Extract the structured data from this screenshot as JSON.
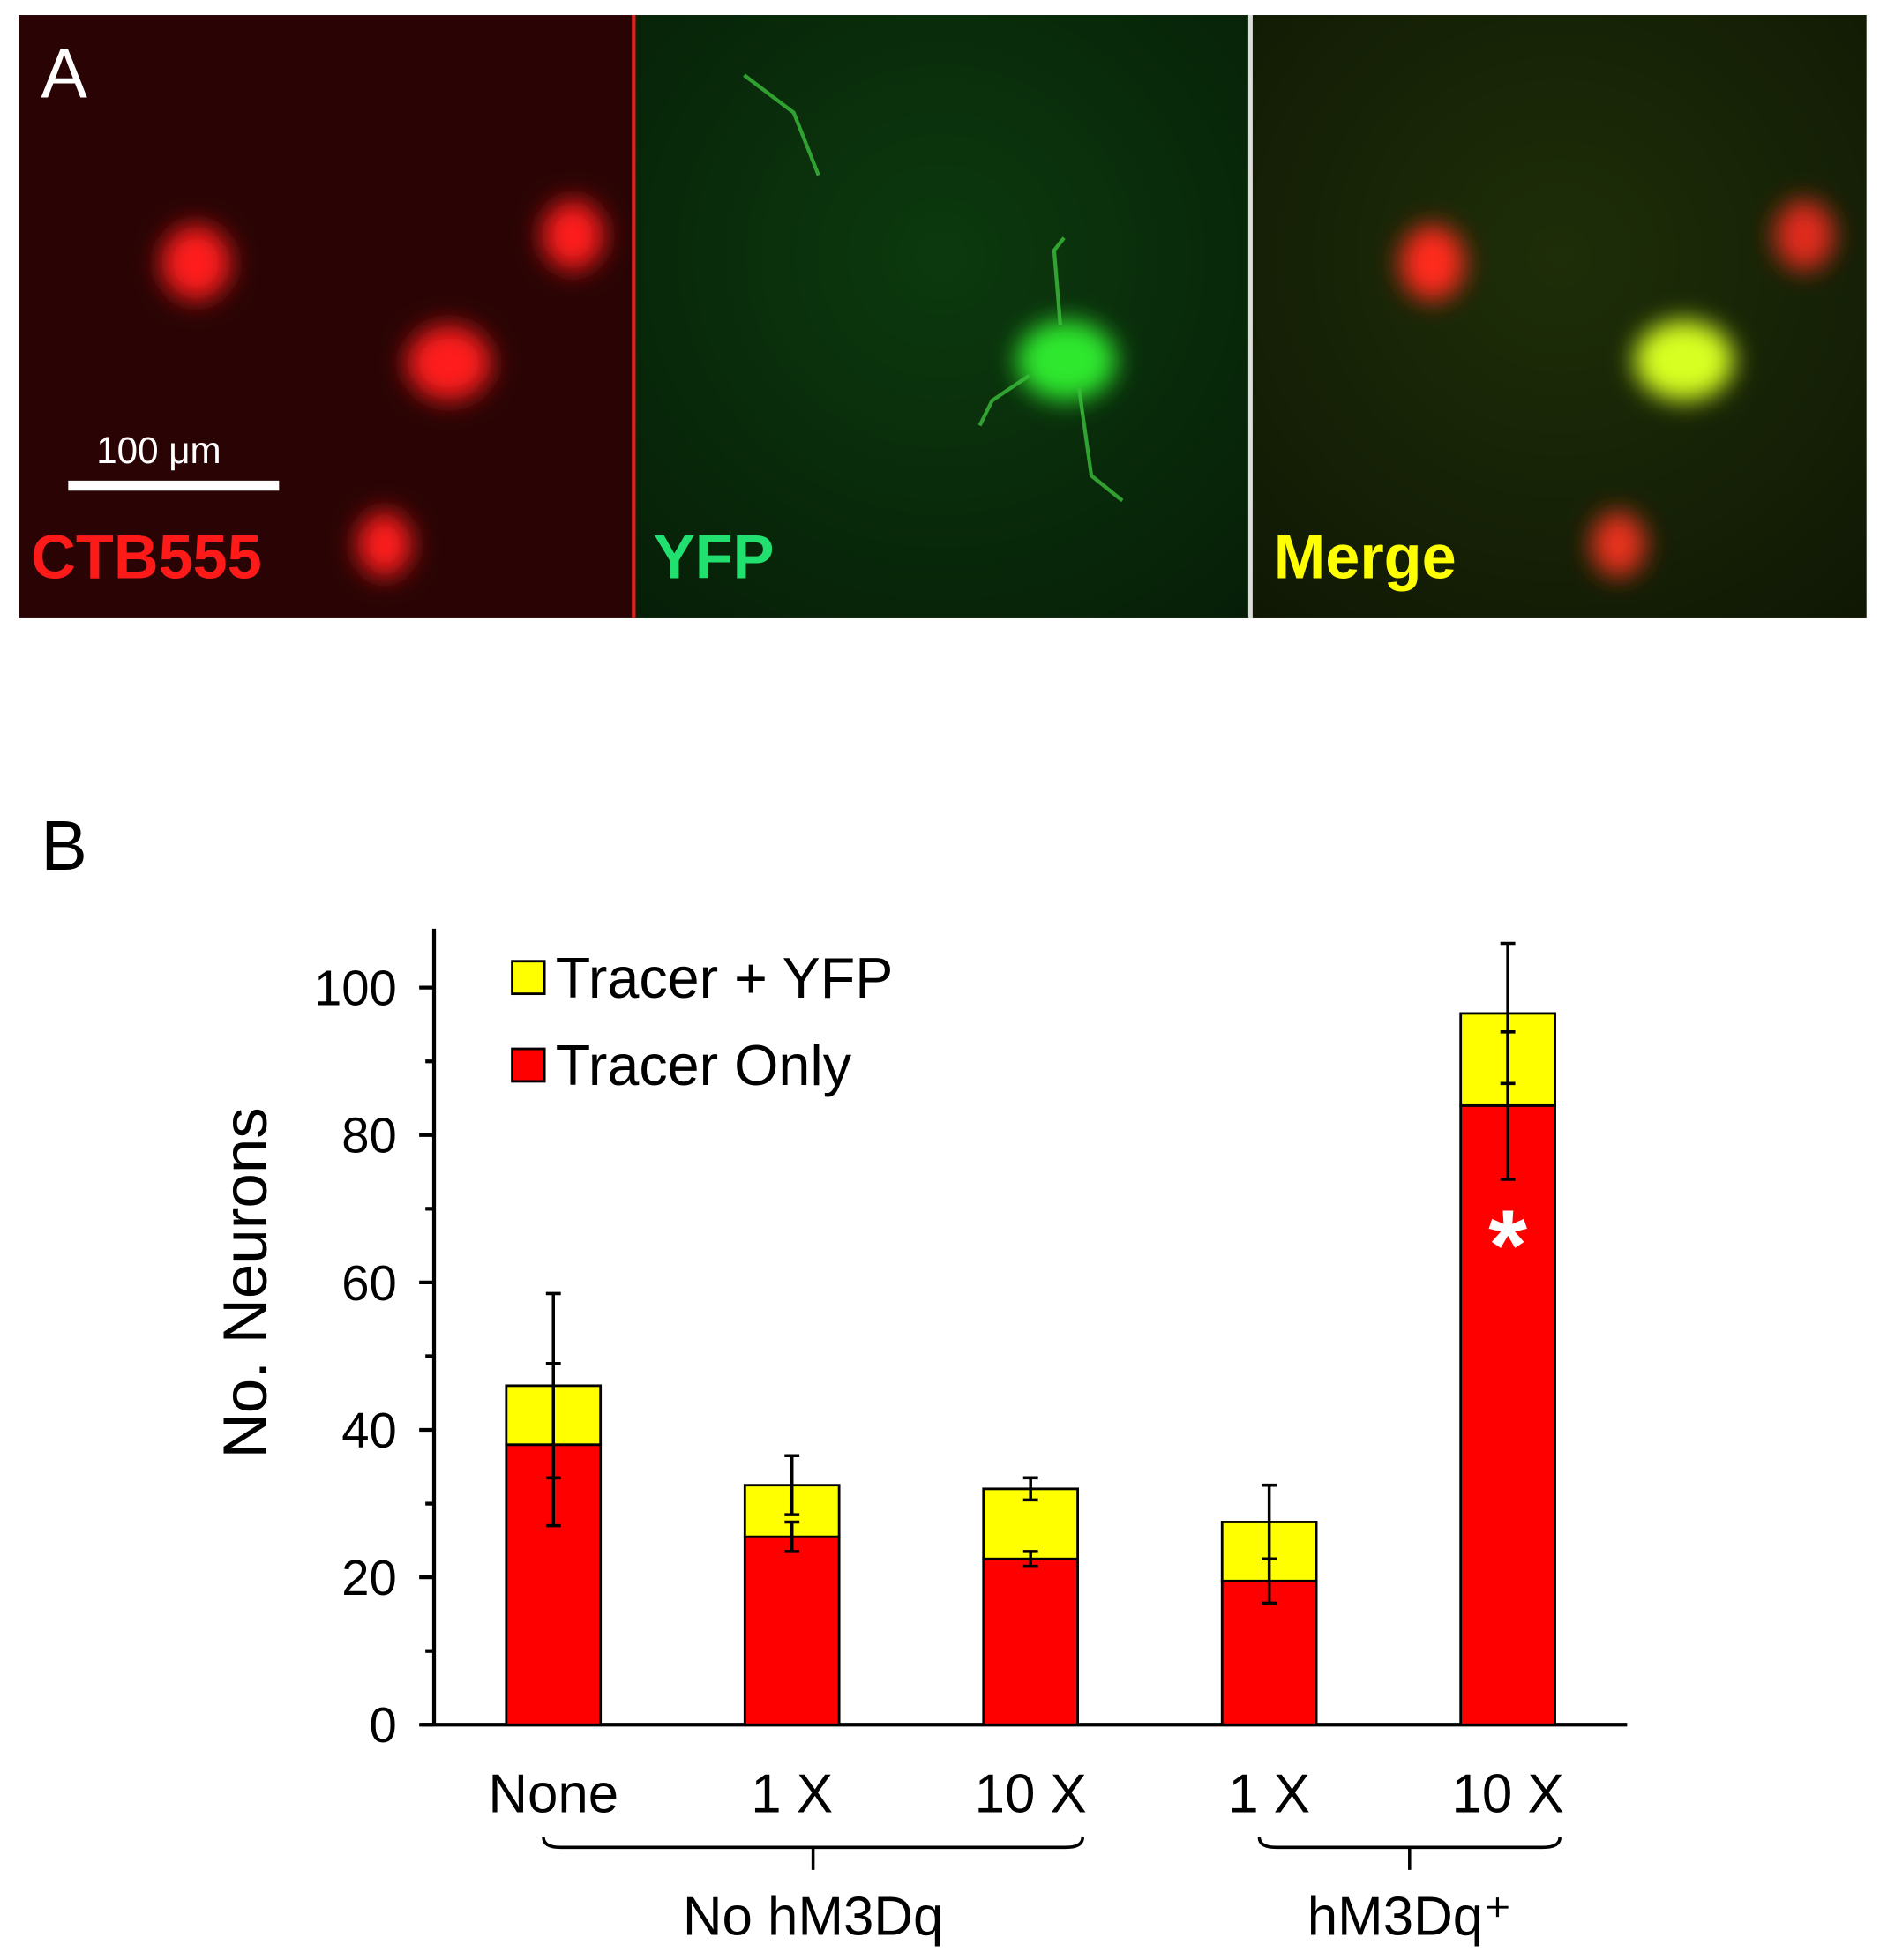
{
  "panel_a": {
    "label": "A",
    "scale_bar": "100 μm",
    "channels": [
      "CTB555",
      "YFP",
      "Merge"
    ]
  },
  "chart_data": {
    "type": "stacked-bar",
    "panel_label": "B",
    "ylabel": "No. Neurons",
    "categories": [
      "None",
      "1 X",
      "10 X",
      "1 X",
      "10 X"
    ],
    "groups": [
      {
        "name": "No hM3Dq",
        "start": 0,
        "end": 2
      },
      {
        "name": "hM3Dq⁺",
        "start": 3,
        "end": 4
      }
    ],
    "series": [
      {
        "name": "Tracer Only",
        "color": "#ff0000",
        "values": [
          38,
          25.5,
          22.5,
          19.5,
          84
        ],
        "errors": [
          11,
          2,
          1,
          3,
          10
        ]
      },
      {
        "name": "Tracer + YFP",
        "color": "#ffff00",
        "values": [
          8,
          7,
          9.5,
          8,
          12.5
        ],
        "errors": [
          12.5,
          4,
          1.5,
          5,
          9.5
        ]
      }
    ],
    "annotation": "*",
    "ylim": [
      0,
      108
    ],
    "yticks": [
      0,
      20,
      40,
      60,
      80,
      100
    ]
  }
}
